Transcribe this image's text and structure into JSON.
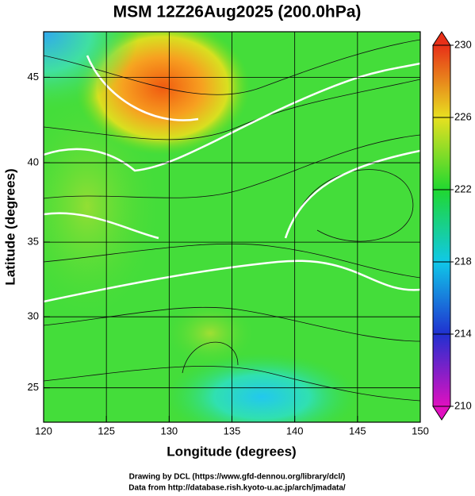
{
  "chart_data": {
    "type": "map",
    "title": "MSM 12Z26Aug2025 (200.0hPa)",
    "xlabel": "Longitude (degrees)",
    "ylabel": "Latitude  (degrees)",
    "xlim": [
      120,
      150
    ],
    "xticks": [
      120,
      125,
      130,
      135,
      140,
      145,
      150
    ],
    "ylim": [
      22.5,
      47.5
    ],
    "yticks": [
      25,
      30,
      35,
      40,
      45
    ],
    "projection": "mercator",
    "grid": true,
    "colorbar": {
      "lim": [
        210,
        230
      ],
      "ticks": [
        210,
        214,
        218,
        222,
        226,
        230
      ]
    },
    "notes": [
      "Drawing by DCL (https://www.gfd-dennou.org/library/dcl/)",
      "Data from http://database.rish.kyoto-u.ac.jp/arch/jmadata/"
    ]
  }
}
